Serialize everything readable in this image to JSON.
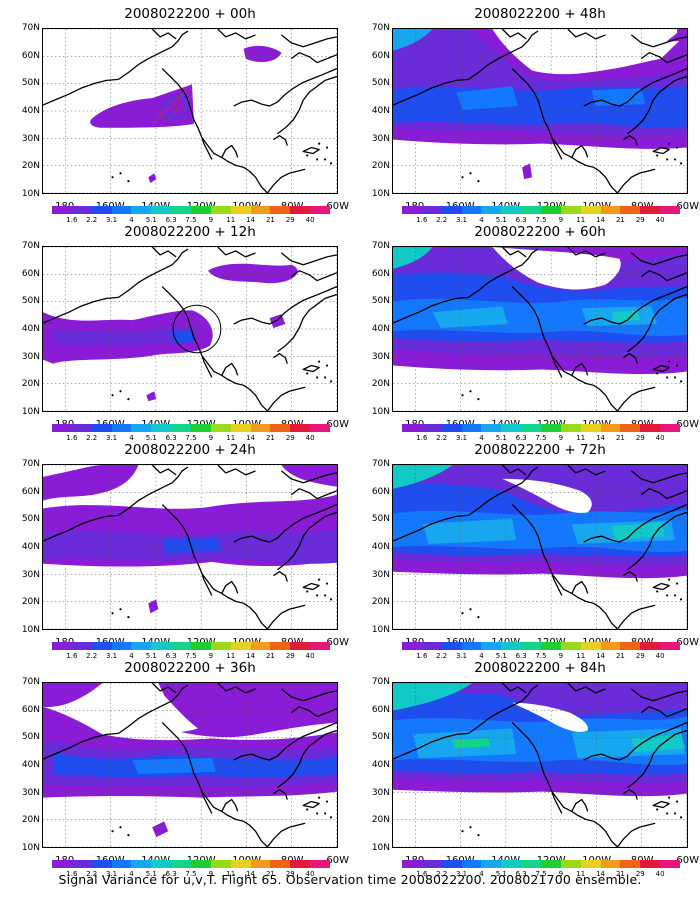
{
  "colorbar": {
    "colors": [
      "#8a1bd6",
      "#6a2bd9",
      "#1f4df0",
      "#1478ff",
      "#17a7ee",
      "#11c9c7",
      "#14d48a",
      "#20cc33",
      "#9ad81a",
      "#e8d020",
      "#f19a1c",
      "#f06214",
      "#e11a3c",
      "#e8157a"
    ],
    "labels": [
      "1.6",
      "2.2",
      "3.1",
      "4",
      "5.1",
      "6.3",
      "7.5",
      "9",
      "11",
      "14",
      "21",
      "29",
      "40"
    ]
  },
  "axes": {
    "y_labels": [
      "70N",
      "60N",
      "50N",
      "40N",
      "30N",
      "20N",
      "10N"
    ],
    "x_labels": [
      "180",
      "160W",
      "140W",
      "120W",
      "100W",
      "80W",
      "60W"
    ],
    "lat_range": [
      10,
      70
    ],
    "lon_range": [
      -190,
      -60
    ]
  },
  "panels": [
    {
      "title": "2008022200 + 00h",
      "level": 0
    },
    {
      "title": "2008022200 + 48h",
      "level": 4
    },
    {
      "title": "2008022200 + 12h",
      "level": 1
    },
    {
      "title": "2008022200 + 60h",
      "level": 5
    },
    {
      "title": "2008022200 + 24h",
      "level": 2
    },
    {
      "title": "2008022200 + 72h",
      "level": 6
    },
    {
      "title": "2008022200 + 36h",
      "level": 3
    },
    {
      "title": "2008022200 + 84h",
      "level": 7
    }
  ],
  "caption": "Signal Variance for u,v,T. Flight 65. Observation time 2008022200. 2008021700 ensemble."
}
